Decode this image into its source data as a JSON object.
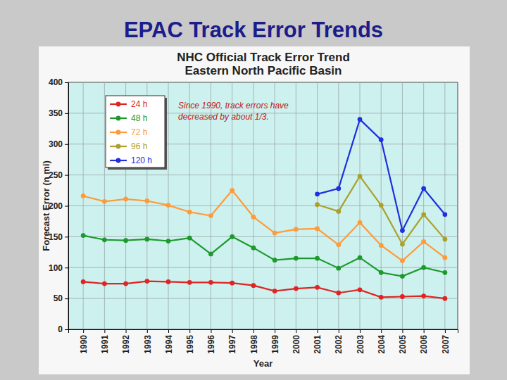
{
  "heading": "EPAC Track Error Trends",
  "chart_data": {
    "type": "line",
    "title": "NHC Official Track Error Trend",
    "subtitle": "Eastern North Pacific Basin",
    "x_label": "Year",
    "y_label": "Forecast Error (n mi)",
    "annotation": [
      "Since 1990, track errors have",
      "decreased by about 1/3."
    ],
    "x": [
      1990,
      1991,
      1992,
      1993,
      1994,
      1995,
      1996,
      1997,
      1998,
      1999,
      2000,
      2001,
      2002,
      2003,
      2004,
      2005,
      2006,
      2007
    ],
    "xlim": [
      1989.3,
      2007.6
    ],
    "xticks": [
      1990,
      1991,
      1992,
      1993,
      1994,
      1995,
      1996,
      1997,
      1998,
      1999,
      2000,
      2001,
      2002,
      2003,
      2004,
      2005,
      2006,
      2007
    ],
    "ylim": [
      0,
      400
    ],
    "yticks": [
      0,
      50,
      100,
      150,
      200,
      250,
      300,
      350,
      400
    ],
    "grid": true,
    "legend": "upper left",
    "marker": "circle",
    "line_style": "solid",
    "series": [
      {
        "name": "24 h",
        "color": "#e02424",
        "values": [
          77,
          74,
          74,
          78,
          77,
          76,
          76,
          75,
          71,
          62,
          66,
          68,
          59,
          64,
          52,
          53,
          54,
          50
        ]
      },
      {
        "name": "48 h",
        "color": "#1c9a2c",
        "values": [
          152,
          145,
          144,
          146,
          143,
          148,
          122,
          150,
          132,
          112,
          115,
          115,
          99,
          116,
          92,
          86,
          100,
          92
        ]
      },
      {
        "name": "72 h",
        "color": "#ff9a3a",
        "values": [
          216,
          207,
          211,
          208,
          201,
          190,
          184,
          225,
          182,
          156,
          162,
          163,
          137,
          173,
          136,
          111,
          142,
          116
        ]
      },
      {
        "name": "96 h",
        "color": "#aca02c",
        "values": [
          null,
          null,
          null,
          null,
          null,
          null,
          null,
          null,
          null,
          null,
          null,
          202,
          191,
          248,
          201,
          138,
          186,
          146
        ]
      },
      {
        "name": "120 h",
        "color": "#1f2fe0",
        "values": [
          null,
          null,
          null,
          null,
          null,
          null,
          null,
          null,
          null,
          null,
          null,
          219,
          228,
          340,
          307,
          160,
          228,
          186
        ]
      }
    ]
  }
}
